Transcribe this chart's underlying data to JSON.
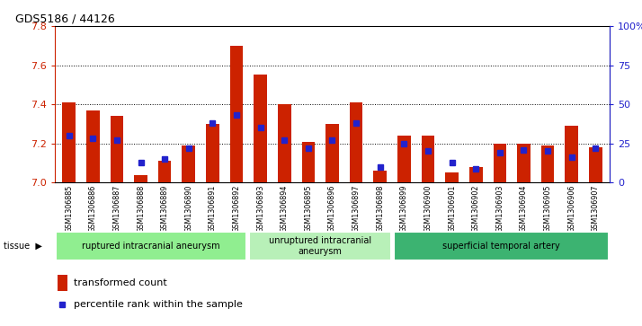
{
  "title": "GDS5186 / 44126",
  "samples": [
    "GSM1306885",
    "GSM1306886",
    "GSM1306887",
    "GSM1306888",
    "GSM1306889",
    "GSM1306890",
    "GSM1306891",
    "GSM1306892",
    "GSM1306893",
    "GSM1306894",
    "GSM1306895",
    "GSM1306896",
    "GSM1306897",
    "GSM1306898",
    "GSM1306899",
    "GSM1306900",
    "GSM1306901",
    "GSM1306902",
    "GSM1306903",
    "GSM1306904",
    "GSM1306905",
    "GSM1306906",
    "GSM1306907"
  ],
  "red_values": [
    7.41,
    7.37,
    7.34,
    7.04,
    7.11,
    7.19,
    7.3,
    7.7,
    7.55,
    7.4,
    7.21,
    7.3,
    7.41,
    7.06,
    7.24,
    7.24,
    7.05,
    7.08,
    7.2,
    7.2,
    7.19,
    7.29,
    7.18
  ],
  "blue_values_pct": [
    30,
    28,
    27,
    13,
    15,
    22,
    38,
    43,
    35,
    27,
    22,
    27,
    38,
    10,
    25,
    20,
    13,
    9,
    19,
    21,
    20,
    16,
    22
  ],
  "groups": [
    {
      "label": "ruptured intracranial aneurysm",
      "start": 0,
      "end": 8,
      "color": "#90ee90"
    },
    {
      "label": "unruptured intracranial\naneurysm",
      "start": 8,
      "end": 14,
      "color": "#b8f0b8"
    },
    {
      "label": "superficial temporal artery",
      "start": 14,
      "end": 23,
      "color": "#3cb371"
    }
  ],
  "ylim_left": [
    7.0,
    7.8
  ],
  "ylim_right": [
    0,
    100
  ],
  "yticks_left": [
    7.0,
    7.2,
    7.4,
    7.6,
    7.8
  ],
  "yticks_right": [
    0,
    25,
    50,
    75,
    100
  ],
  "bar_color": "#cc2200",
  "dot_color": "#2222cc",
  "plot_bg": "#ffffff",
  "xticklabel_bg": "#d8d8d8"
}
